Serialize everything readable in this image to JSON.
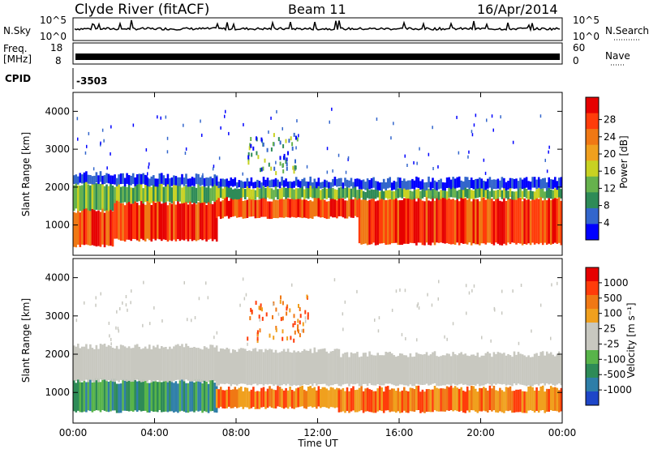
{
  "header": {
    "title": "Clyde River (fitACF)",
    "beam": "Beam 11",
    "date": "16/Apr/2014"
  },
  "summary": {
    "nsky_label": "N.Sky",
    "nsky_ticks": [
      "10^5",
      "10^0"
    ],
    "nsearch_label": "N.Search",
    "nsearch_ticks": [
      "10^5",
      "10^0"
    ],
    "freq_label_1": "Freq.",
    "freq_label_2": "[MHz]",
    "freq_ticks": [
      "18",
      "8"
    ],
    "nave_label": "Nave",
    "nave_ticks": [
      "60",
      "0"
    ],
    "cpid_label": "CPID",
    "cpid_value": "-3503"
  },
  "chart_data": [
    {
      "type": "heatmap",
      "panel": "power",
      "ylabel": "Slant Range [km]",
      "ylim": [
        200,
        4500
      ],
      "yticks": [
        "1000",
        "2000",
        "3000",
        "4000"
      ],
      "xlim_hours": [
        0,
        24
      ],
      "colorbar": {
        "label": "Power [dB]",
        "ticks": [
          "4",
          "8",
          "12",
          "16",
          "20",
          "24",
          "28"
        ],
        "colors": [
          "#0000ff",
          "#3366cc",
          "#2e8b57",
          "#66b24d",
          "#c8d222",
          "#f0a01e",
          "#f07814",
          "#ff3c0a",
          "#e60000"
        ]
      },
      "bands_km_by_hour": [
        {
          "hours": [
            0,
            2
          ],
          "red": [
            450,
            1400
          ],
          "green": [
            1400,
            2100
          ],
          "blue": [
            2100,
            2350
          ]
        },
        {
          "hours": [
            2,
            7
          ],
          "red": [
            600,
            1600
          ],
          "green": [
            1600,
            2050
          ],
          "blue": [
            2050,
            2300
          ]
        },
        {
          "hours": [
            7,
            14
          ],
          "red": [
            1200,
            1700
          ],
          "green": [
            1700,
            2000
          ],
          "blue": [
            2000,
            2200
          ],
          "patches": [
            [
              8.5,
              11,
              2400,
              3500
            ]
          ]
        },
        {
          "hours": [
            14,
            24
          ],
          "red": [
            500,
            1700
          ],
          "green": [
            1700,
            1950
          ],
          "blue": [
            1950,
            2200
          ]
        }
      ]
    },
    {
      "type": "heatmap",
      "panel": "velocity",
      "ylabel": "Slant Range [km]",
      "ylim": [
        200,
        4500
      ],
      "yticks": [
        "1000",
        "2000",
        "3000",
        "4000"
      ],
      "xlim_hours": [
        0,
        24
      ],
      "colorbar": {
        "label": "Velocity [m s⁻¹]",
        "ticks": [
          "1000",
          "500",
          "100",
          "25",
          "-25",
          "-100",
          "-500",
          "-1000"
        ],
        "colors": [
          "#1e46c8",
          "#2e7ea8",
          "#2e8b57",
          "#58b44a",
          "#c8c8c0",
          "#c8c8c0",
          "#f0a01e",
          "#f07814",
          "#ff3c0a",
          "#e60000"
        ]
      },
      "bands_km_by_hour": [
        {
          "hours": [
            0,
            7
          ],
          "green": [
            500,
            1300
          ],
          "grey": [
            1300,
            2200
          ]
        },
        {
          "hours": [
            7,
            13
          ],
          "orange": [
            600,
            1100
          ],
          "grey": [
            1200,
            2100
          ],
          "patches": [
            [
              8.5,
              11.5,
              2400,
              3600
            ]
          ]
        },
        {
          "hours": [
            13,
            24
          ],
          "orange": [
            500,
            1100
          ],
          "grey": [
            1200,
            2000
          ]
        }
      ]
    }
  ],
  "time_axis": {
    "label": "Time UT",
    "ticks": [
      "00:00",
      "04:00",
      "08:00",
      "12:00",
      "16:00",
      "20:00",
      "00:00"
    ]
  }
}
